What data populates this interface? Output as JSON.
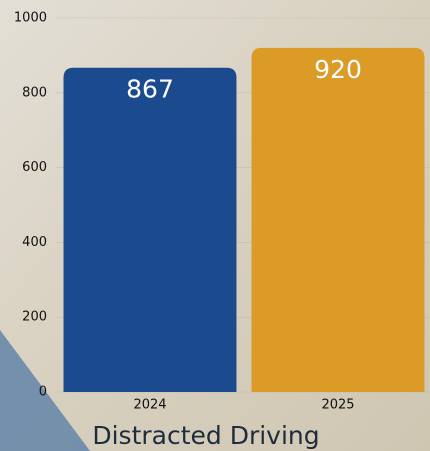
{
  "chart_data": {
    "type": "bar",
    "title": "Distracted Driving",
    "categories": [
      "2024",
      "2025"
    ],
    "series": [
      {
        "values": [
          867,
          920
        ],
        "colors": [
          "#1c4a8f",
          "#dc9a26"
        ]
      }
    ],
    "ylim": [
      0,
      1000
    ],
    "yticks": [
      0,
      200,
      400,
      600,
      800,
      1000
    ],
    "grid": true
  }
}
